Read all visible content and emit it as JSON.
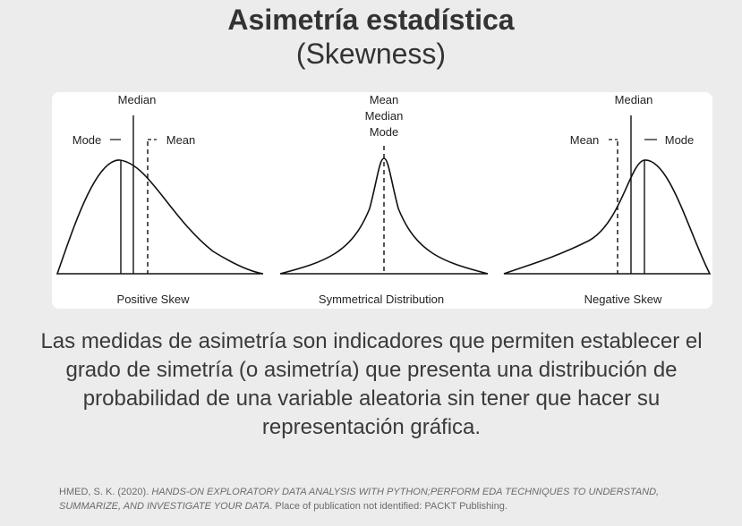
{
  "header": {
    "title": "Asimetría estadística",
    "subtitle": "(Skewness)"
  },
  "figure": {
    "panels": [
      {
        "caption": "Positive Skew",
        "labels": {
          "median": "Median",
          "mode": "Mode",
          "mean": "Mean"
        }
      },
      {
        "caption": "Symmetrical Distribution",
        "labels": {
          "mean": "Mean",
          "median": "Median",
          "mode": "Mode"
        }
      },
      {
        "caption": "Negative Skew",
        "labels": {
          "median": "Median",
          "mean": "Mean",
          "mode": "Mode"
        }
      }
    ]
  },
  "description": "Las medidas de asimetría son indicadores que permiten establecer el grado de simetría (o asimetría) que presenta una distribución de probabilidad de una variable aleatoria sin tener que hacer su representación gráfica.",
  "citation": {
    "prefix": "HMED, S. K. (2020). ",
    "book_title": "HANDS-ON EXPLORATORY DATA ANALYSIS WITH PYTHON;PERFORM EDA TECHNIQUES TO UNDERSTAND, SUMMARIZE, AND INVESTIGATE YOUR DATA",
    "suffix": ". Place of publication not identified: PACKT Publishing."
  }
}
